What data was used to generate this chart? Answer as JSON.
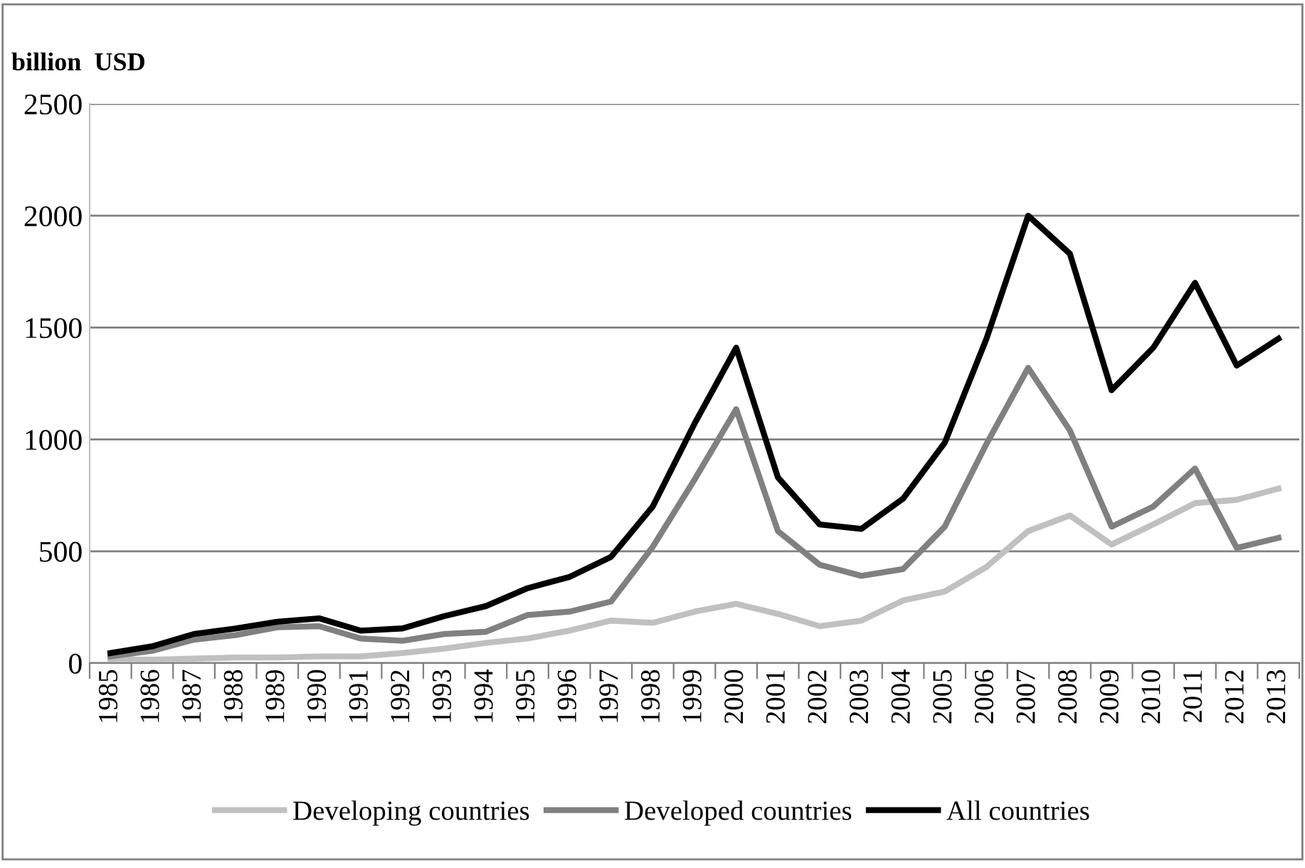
{
  "chart_data": {
    "type": "line",
    "ylabel": "billion  USD",
    "categories": [
      "1985",
      "1986",
      "1987",
      "1988",
      "1989",
      "1990",
      "1991",
      "1992",
      "1993",
      "1994",
      "1995",
      "1996",
      "1997",
      "1998",
      "1999",
      "2000",
      "2001",
      "2002",
      "2003",
      "2004",
      "2005",
      "2006",
      "2007",
      "2008",
      "2009",
      "2010",
      "2011",
      "2012",
      "2013"
    ],
    "series": [
      {
        "name": "Developing countries",
        "color": "#c0c0c0",
        "values": [
          15,
          15,
          20,
          25,
          25,
          30,
          30,
          45,
          65,
          90,
          110,
          145,
          190,
          180,
          230,
          265,
          220,
          165,
          190,
          280,
          320,
          430,
          590,
          660,
          530,
          620,
          715,
          730,
          780
        ]
      },
      {
        "name": "Developed countries",
        "color": "#808080",
        "values": [
          30,
          55,
          105,
          125,
          160,
          165,
          110,
          100,
          130,
          140,
          215,
          230,
          275,
          520,
          820,
          1135,
          590,
          440,
          390,
          420,
          610,
          980,
          1320,
          1040,
          610,
          700,
          870,
          515,
          560
        ]
      },
      {
        "name": "All countries",
        "color": "#000000",
        "values": [
          45,
          75,
          130,
          155,
          185,
          200,
          145,
          155,
          210,
          255,
          335,
          385,
          475,
          700,
          1070,
          1410,
          830,
          620,
          600,
          735,
          985,
          1450,
          2000,
          1830,
          1220,
          1410,
          1700,
          1330,
          1450
        ]
      }
    ],
    "ylim": [
      0,
      2500
    ],
    "yticks": [
      0,
      500,
      1000,
      1500,
      2000,
      2500
    ],
    "grid": "y",
    "legend": "bottom",
    "marker": "none",
    "line_style": "solid"
  }
}
